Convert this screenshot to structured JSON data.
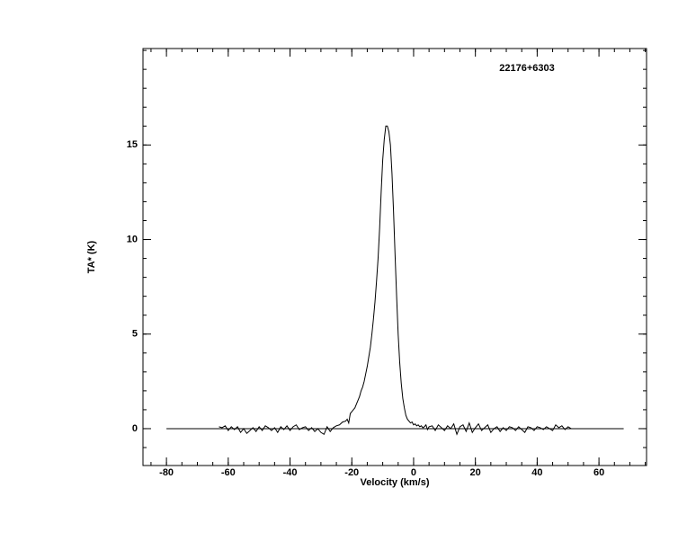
{
  "chart_data": {
    "type": "line",
    "annotation": "22176+6303",
    "x_label": "Velocity (km/s)",
    "y_label": "TA* (K)",
    "xlim": [
      -87.6,
      75.4
    ],
    "ylim": [
      -1.95,
      20.1
    ],
    "xticks": [
      -80,
      -60,
      -40,
      -20,
      0,
      20,
      40,
      60
    ],
    "yticks": [
      0,
      5,
      10,
      15
    ],
    "xminorticks": [
      -85,
      -80,
      -75,
      -70,
      -65,
      -60,
      -55,
      -50,
      -45,
      -40,
      -35,
      -30,
      -25,
      -20,
      -15,
      -10,
      -5,
      0,
      5,
      10,
      15,
      20,
      25,
      30,
      35,
      40,
      45,
      50,
      55,
      60,
      65,
      70,
      75
    ],
    "yminorticks": [
      -1,
      0,
      1,
      2,
      3,
      4,
      5,
      6,
      7,
      8,
      9,
      10,
      11,
      12,
      13,
      14,
      15,
      16,
      17,
      18,
      19,
      20
    ],
    "baseline": {
      "x": [
        -80,
        68
      ],
      "y": 0
    },
    "color": "#000000",
    "x": [
      -63,
      -62,
      -61,
      -60,
      -59,
      -58,
      -57,
      -56,
      -55,
      -54,
      -53,
      -52,
      -51,
      -50,
      -49,
      -48,
      -47,
      -46,
      -45,
      -44,
      -43,
      -42,
      -41,
      -40,
      -39,
      -38,
      -37,
      -36,
      -35,
      -34,
      -33,
      -32,
      -31,
      -30,
      -29,
      -28,
      -27,
      -26,
      -25,
      -24,
      -23,
      -22,
      -21.5,
      -21,
      -20.5,
      -20,
      -19.5,
      -19,
      -18.5,
      -18,
      -17.5,
      -17,
      -16.5,
      -16,
      -15.5,
      -15,
      -14.5,
      -14,
      -13.5,
      -13,
      -12.5,
      -12,
      -11.5,
      -11,
      -10.5,
      -10,
      -9.5,
      -9,
      -8.5,
      -8,
      -7.5,
      -7,
      -6.5,
      -6,
      -5.5,
      -5,
      -4.5,
      -4,
      -3.5,
      -3,
      -2.5,
      -2,
      -1.5,
      -1,
      -0.5,
      0,
      0.5,
      1,
      1.5,
      2,
      2.5,
      3,
      3.5,
      4,
      4.5,
      5,
      6,
      7,
      8,
      9,
      10,
      11,
      12,
      13,
      14,
      15,
      16,
      17,
      18,
      19,
      20,
      21,
      22,
      23,
      24,
      25,
      26,
      27,
      28,
      29,
      30,
      31,
      32,
      33,
      34,
      35,
      36,
      37,
      38,
      39,
      40,
      41,
      42,
      43,
      44,
      45,
      46,
      47,
      48,
      49,
      50,
      51
    ],
    "values": [
      0.1,
      0.05,
      0.15,
      -0.1,
      0.1,
      -0.05,
      0.1,
      -0.2,
      0,
      -0.25,
      -0.1,
      0.05,
      -0.15,
      0.1,
      -0.1,
      0.15,
      0.05,
      -0.1,
      0.05,
      -0.2,
      0.1,
      -0.05,
      0.15,
      -0.1,
      0.1,
      0.2,
      -0.05,
      0.05,
      0.1,
      -0.1,
      0.05,
      -0.15,
      0,
      -0.2,
      -0.3,
      0.1,
      -0.15,
      0.05,
      0.15,
      0.2,
      0.35,
      0.4,
      0.5,
      0.3,
      0.8,
      0.9,
      1.0,
      1.1,
      1.3,
      1.5,
      1.7,
      2.0,
      2.2,
      2.5,
      2.9,
      3.3,
      3.8,
      4.3,
      5.0,
      5.8,
      6.7,
      7.8,
      9.0,
      10.6,
      12.5,
      14.2,
      15.3,
      16.0,
      16.0,
      15.7,
      15.0,
      13.5,
      11.5,
      9.2,
      7.0,
      5.0,
      3.5,
      2.4,
      1.6,
      1.1,
      0.7,
      0.5,
      0.4,
      0.3,
      0.35,
      0.2,
      0.25,
      0.15,
      0.2,
      0.1,
      0.15,
      0.05,
      0.1,
      0.2,
      -0.05,
      0.1,
      0.15,
      -0.1,
      0.2,
      0.05,
      -0.1,
      0.15,
      0,
      0.25,
      -0.3,
      0.1,
      0.2,
      -0.15,
      0.3,
      -0.2,
      0.05,
      0.25,
      -0.1,
      0.05,
      0.2,
      -0.2,
      0,
      0.1,
      -0.15,
      0.05,
      -0.1,
      0.1,
      0.05,
      -0.1,
      0.1,
      -0.05,
      -0.2,
      0.1,
      0.05,
      -0.1,
      0.1,
      0.05,
      -0.05,
      0.1,
      0,
      -0.1,
      0.2,
      0.05,
      0.15,
      -0.05,
      0.1,
      0
    ]
  }
}
